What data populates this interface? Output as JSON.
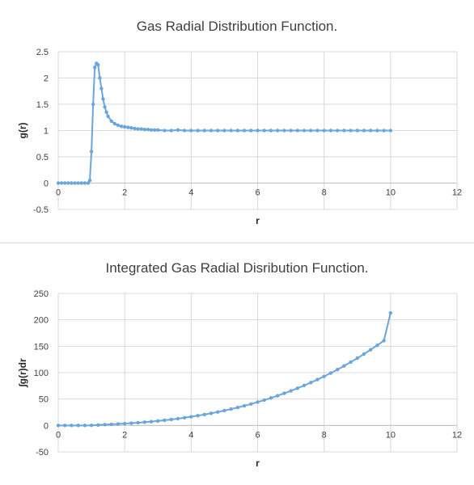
{
  "chart_data": [
    {
      "type": "line",
      "title": "Gas Radial Distribution Function.",
      "xlabel": "r",
      "ylabel": "g(r)",
      "xlim": [
        0,
        12
      ],
      "ylim": [
        -0.5,
        2.5
      ],
      "xticks": [
        "0",
        "2",
        "4",
        "6",
        "8",
        "10",
        "12"
      ],
      "yticks": [
        "-0.5",
        "0",
        "0.5",
        "1",
        "1.5",
        "2",
        "2.5"
      ],
      "grid": true,
      "legend": "none",
      "color": "#6aa5dc",
      "series": [
        {
          "x": [
            0,
            0.1,
            0.2,
            0.3,
            0.4,
            0.5,
            0.6,
            0.7,
            0.8,
            0.9,
            0.95,
            1.0,
            1.05,
            1.1,
            1.15,
            1.2,
            1.25,
            1.3,
            1.35,
            1.4,
            1.45,
            1.5,
            1.6,
            1.7,
            1.8,
            1.9,
            2.0,
            2.1,
            2.2,
            2.3,
            2.4,
            2.5,
            2.6,
            2.7,
            2.8,
            2.9,
            3.0,
            3.2,
            3.4,
            3.6,
            3.8,
            4.0,
            4.2,
            4.4,
            4.6,
            4.8,
            5.0,
            5.2,
            5.4,
            5.6,
            5.8,
            6.0,
            6.2,
            6.4,
            6.6,
            6.8,
            7.0,
            7.2,
            7.4,
            7.6,
            7.8,
            8.0,
            8.2,
            8.4,
            8.6,
            8.8,
            9.0,
            9.2,
            9.4,
            9.6,
            9.8,
            10.0
          ],
          "y": [
            0,
            0,
            0,
            0,
            0,
            0,
            0,
            0,
            0,
            0,
            0.05,
            0.6,
            1.5,
            2.2,
            2.28,
            2.25,
            2.0,
            1.8,
            1.6,
            1.45,
            1.35,
            1.27,
            1.18,
            1.13,
            1.1,
            1.08,
            1.07,
            1.06,
            1.05,
            1.04,
            1.03,
            1.03,
            1.02,
            1.02,
            1.01,
            1.01,
            1.01,
            1.0,
            1.0,
            1.01,
            1.0,
            1.0,
            1.0,
            1.0,
            1.0,
            1.0,
            1.0,
            1.0,
            1.0,
            1.0,
            1.0,
            1.0,
            1.0,
            1.0,
            1.0,
            1.0,
            1.0,
            1.0,
            1.0,
            1.0,
            1.0,
            1.0,
            1.0,
            1.0,
            1.0,
            1.0,
            1.0,
            1.0,
            1.0,
            1.0,
            1.0,
            1.0
          ]
        }
      ]
    },
    {
      "type": "line",
      "title": "Integrated Gas Radial Disribution Function.",
      "xlabel": "r",
      "ylabel": "∫g(r)dr",
      "xlim": [
        0,
        12
      ],
      "ylim": [
        -50,
        250
      ],
      "xticks": [
        "0",
        "2",
        "4",
        "6",
        "8",
        "10",
        "12"
      ],
      "yticks": [
        "-50",
        "0",
        "50",
        "100",
        "150",
        "200",
        "250"
      ],
      "grid": true,
      "legend": "none",
      "color": "#6aa5dc",
      "series": [
        {
          "x": [
            0,
            0.2,
            0.4,
            0.6,
            0.8,
            1.0,
            1.2,
            1.4,
            1.6,
            1.8,
            2.0,
            2.2,
            2.4,
            2.6,
            2.8,
            3.0,
            3.2,
            3.4,
            3.6,
            3.8,
            4.0,
            4.2,
            4.4,
            4.6,
            4.8,
            5.0,
            5.2,
            5.4,
            5.6,
            5.8,
            6.0,
            6.2,
            6.4,
            6.6,
            6.8,
            7.0,
            7.2,
            7.4,
            7.6,
            7.8,
            8.0,
            8.2,
            8.4,
            8.6,
            8.8,
            9.0,
            9.2,
            9.4,
            9.6,
            9.8,
            10.0
          ],
          "y": [
            0,
            0,
            0,
            0,
            0,
            0.2,
            0.8,
            1.5,
            2.2,
            2.8,
            3.5,
            4.3,
            5.2,
            6.2,
            7.3,
            8.5,
            9.8,
            11.3,
            12.9,
            14.6,
            16.5,
            18.5,
            20.7,
            23.0,
            25.5,
            28.1,
            31.0,
            34.0,
            37.2,
            40.6,
            44.2,
            48.0,
            52.1,
            56.3,
            60.8,
            65.5,
            70.5,
            75.7,
            81.2,
            86.9,
            92.9,
            99.2,
            105.8,
            112.7,
            119.9,
            127.4,
            135.2,
            143.3,
            151.8,
            160.6,
            213
          ]
        }
      ]
    }
  ]
}
